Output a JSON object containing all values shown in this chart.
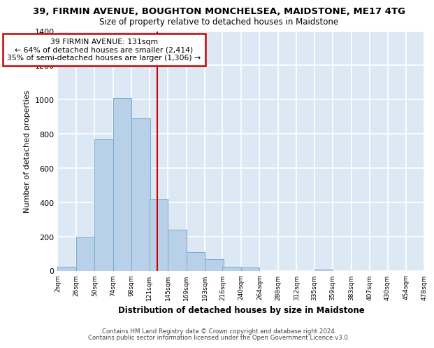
{
  "title1": "39, FIRMIN AVENUE, BOUGHTON MONCHELSEA, MAIDSTONE, ME17 4TG",
  "title2": "Size of property relative to detached houses in Maidstone",
  "xlabel": "Distribution of detached houses by size in Maidstone",
  "ylabel": "Number of detached properties",
  "footer1": "Contains HM Land Registry data © Crown copyright and database right 2024.",
  "footer2": "Contains public sector information licensed under the Open Government Licence v3.0.",
  "bar_values": [
    25,
    200,
    770,
    1010,
    890,
    420,
    240,
    110,
    70,
    25,
    20,
    0,
    0,
    0,
    10,
    0,
    0,
    0,
    0,
    0
  ],
  "bar_color": "#b8d0e8",
  "bar_edge_color": "#7aaad0",
  "x_tick_labels": [
    "2sqm",
    "26sqm",
    "50sqm",
    "74sqm",
    "98sqm",
    "121sqm",
    "145sqm",
    "169sqm",
    "193sqm",
    "216sqm",
    "240sqm",
    "264sqm",
    "288sqm",
    "312sqm",
    "335sqm",
    "359sqm",
    "383sqm",
    "407sqm",
    "430sqm",
    "454sqm",
    "478sqm"
  ],
  "bin_edges": [
    2,
    26,
    50,
    74,
    98,
    121,
    145,
    169,
    193,
    216,
    240,
    264,
    288,
    312,
    335,
    359,
    383,
    407,
    430,
    454,
    478
  ],
  "property_size": 131,
  "annotation_title": "39 FIRMIN AVENUE: 131sqm",
  "annotation_line1": "← 64% of detached houses are smaller (2,414)",
  "annotation_line2": "35% of semi-detached houses are larger (1,306) →",
  "vline_color": "#cc0000",
  "annotation_box_color": "#ffffff",
  "annotation_border_color": "#cc0000",
  "ylim": [
    0,
    1400
  ],
  "ytick_values": [
    0,
    200,
    400,
    600,
    800,
    1000,
    1200,
    1400
  ],
  "background_color": "#dde8f5",
  "grid_color": "#ffffff"
}
